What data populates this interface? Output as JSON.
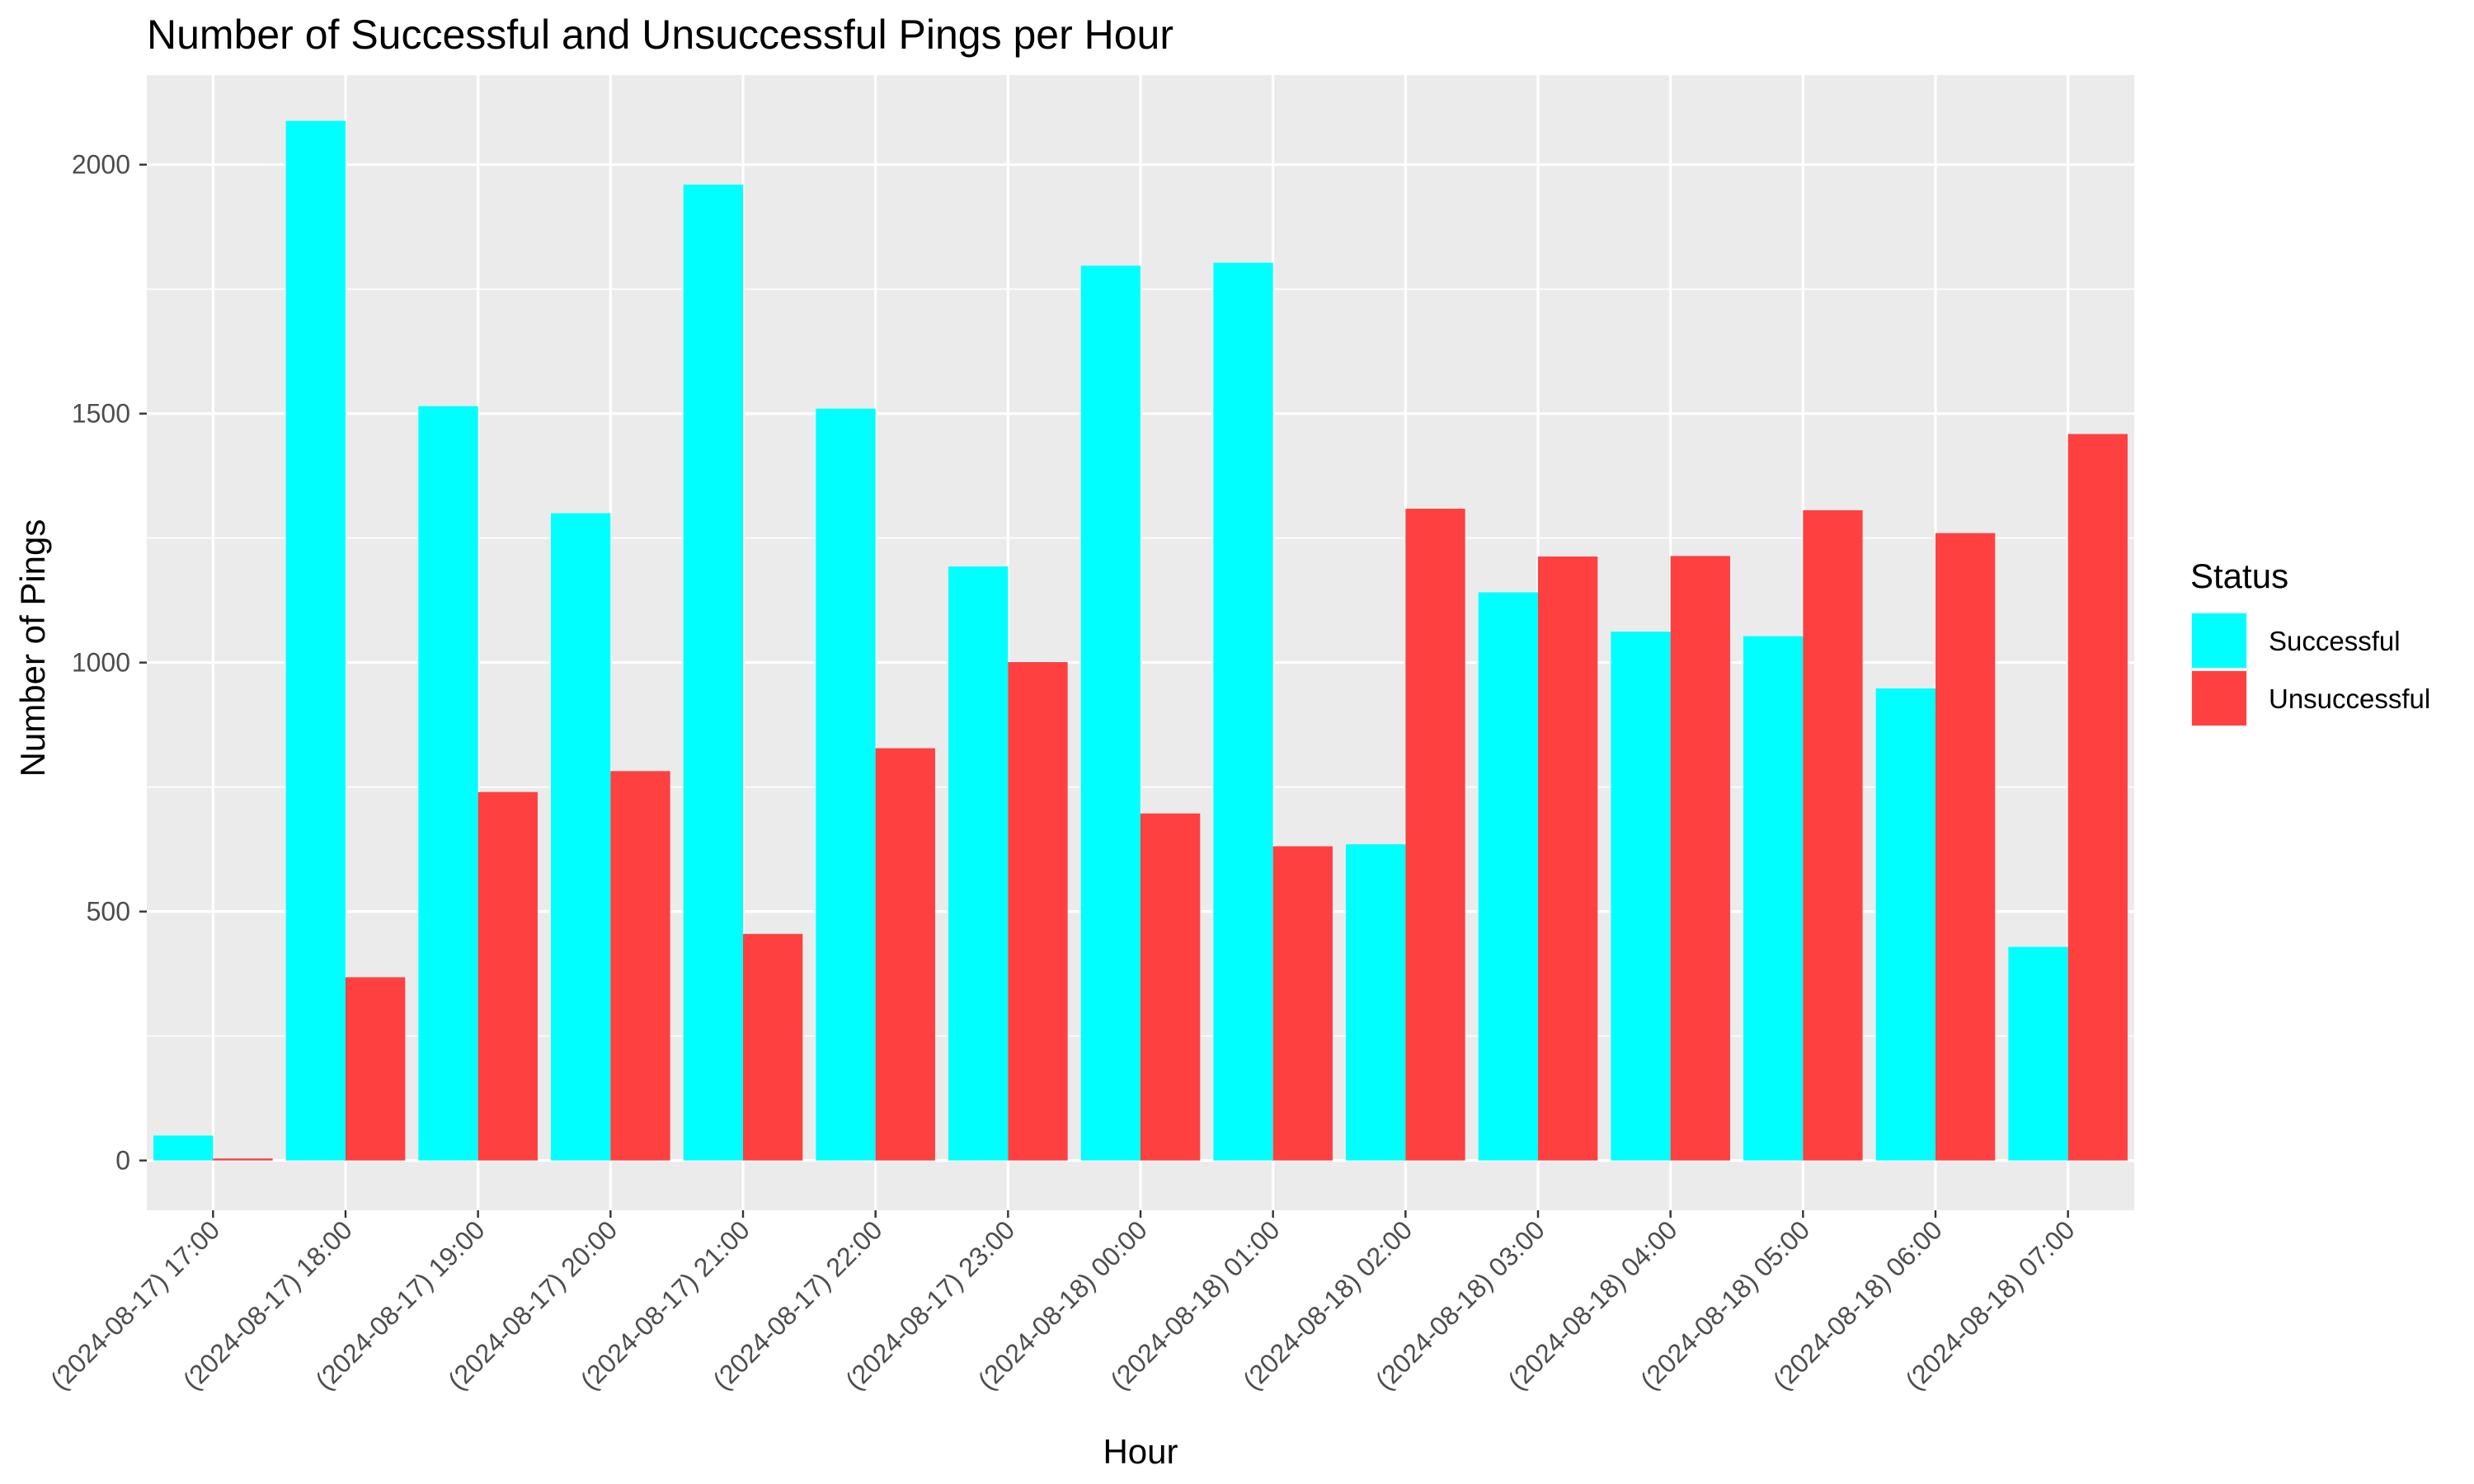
{
  "chart_data": {
    "type": "bar",
    "title": "Number of Successful and Unsuccessful Pings per Hour",
    "xlabel": "Hour",
    "ylabel": "Number of Pings",
    "categories": [
      "(2024-08-17) 17:00",
      "(2024-08-17) 18:00",
      "(2024-08-17) 19:00",
      "(2024-08-17) 20:00",
      "(2024-08-17) 21:00",
      "(2024-08-17) 22:00",
      "(2024-08-17) 23:00",
      "(2024-08-18) 00:00",
      "(2024-08-18) 01:00",
      "(2024-08-18) 02:00",
      "(2024-08-18) 03:00",
      "(2024-08-18) 04:00",
      "(2024-08-18) 05:00",
      "(2024-08-18) 06:00",
      "(2024-08-18) 07:00"
    ],
    "series": [
      {
        "name": "Successful",
        "color": "#00FFFF",
        "values": [
          50,
          2088,
          1515,
          1300,
          1960,
          1510,
          1193,
          1797,
          1803,
          635,
          1141,
          1062,
          1053,
          948,
          429
        ]
      },
      {
        "name": "Unsuccessful",
        "color": "#FF4040",
        "values": [
          4,
          368,
          740,
          782,
          455,
          828,
          1001,
          697,
          631,
          1309,
          1213,
          1214,
          1306,
          1260,
          1459
        ]
      }
    ],
    "ylim": [
      -100,
      2180
    ],
    "yticks": [
      0,
      500,
      1000,
      1500,
      2000
    ],
    "grid": true,
    "panel_background": "#EBEBEB",
    "legend": {
      "title": "Status",
      "position": "right"
    },
    "xtick_rotation": 45
  }
}
